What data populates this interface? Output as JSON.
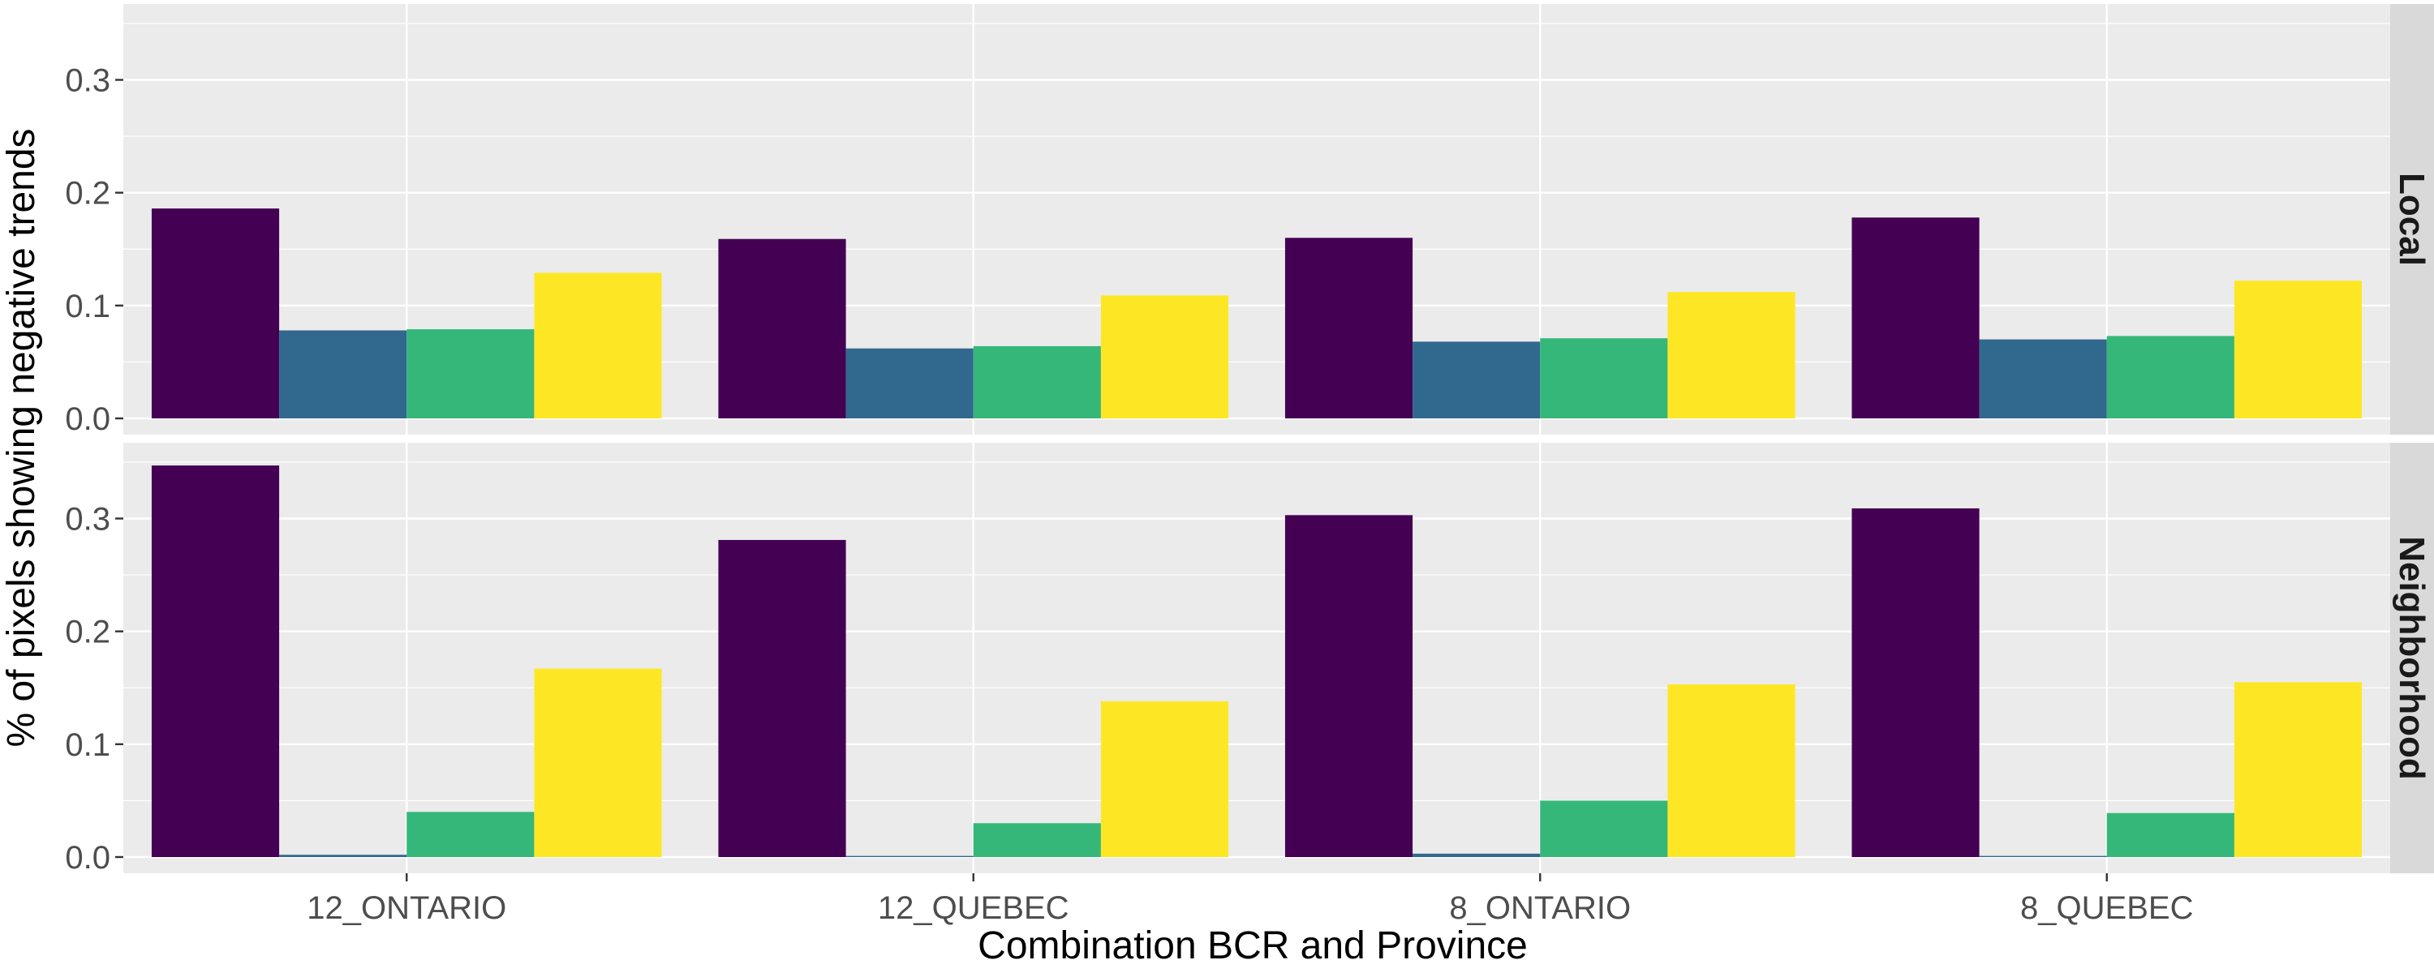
{
  "chart_data": {
    "type": "bar",
    "xlabel": "Combination BCR and Province",
    "ylabel": "% of pixels showing negative trends",
    "categories": [
      "12_ONTARIO",
      "12_QUEBEC",
      "8_ONTARIO",
      "8_QUEBEC"
    ],
    "ylim": [
      0,
      0.36
    ],
    "yticks": [
      0.0,
      0.1,
      0.2,
      0.3
    ],
    "ytick_labels": [
      "0.0",
      "0.1",
      "0.2",
      "0.3"
    ],
    "grid": true,
    "legend": "none",
    "series_colors": [
      "#440154",
      "#31688E",
      "#35B779",
      "#FDE725"
    ],
    "facets": [
      {
        "label": "Local",
        "series": [
          {
            "values": [
              0.186,
              0.159,
              0.16,
              0.178
            ]
          },
          {
            "values": [
              0.078,
              0.062,
              0.068,
              0.07
            ]
          },
          {
            "values": [
              0.079,
              0.064,
              0.071,
              0.073
            ]
          },
          {
            "values": [
              0.129,
              0.109,
              0.112,
              0.122
            ]
          }
        ]
      },
      {
        "label": "Neighborhood",
        "series": [
          {
            "values": [
              0.347,
              0.281,
              0.303,
              0.309
            ]
          },
          {
            "values": [
              0.002,
              0.001,
              0.003,
              0.001
            ]
          },
          {
            "values": [
              0.04,
              0.03,
              0.05,
              0.039
            ]
          },
          {
            "values": [
              0.167,
              0.138,
              0.153,
              0.155
            ]
          }
        ]
      }
    ]
  }
}
